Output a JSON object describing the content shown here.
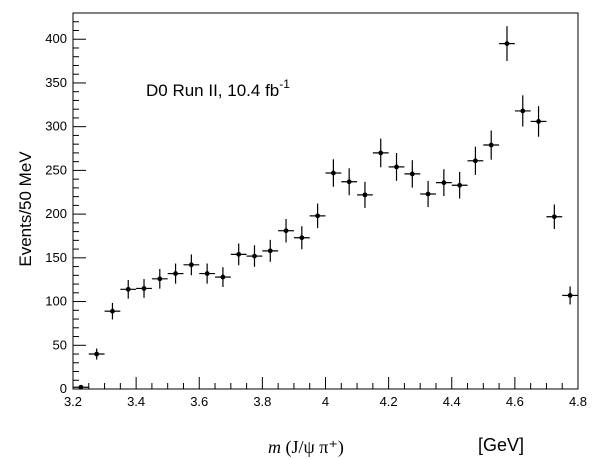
{
  "chart_data": {
    "type": "scatter",
    "style": "histogram with error bars",
    "title": "",
    "annotation": {
      "text": "D0 Run II, 10.4 fb",
      "superscript": "-1"
    },
    "xlabel": {
      "var": "m",
      "rest": " (J/ψ π⁺)",
      "unit": "[GeV]"
    },
    "ylabel": "Events/50 MeV",
    "xlim": [
      3.2,
      4.8
    ],
    "ylim": [
      0,
      430
    ],
    "xticks": [
      "3.2",
      "3.4",
      "3.6",
      "3.8",
      "4",
      "4.2",
      "4.4",
      "4.6",
      "4.8"
    ],
    "yticks": [
      "0",
      "50",
      "100",
      "150",
      "200",
      "250",
      "300",
      "350",
      "400"
    ],
    "bin_width": 0.05,
    "grid": false,
    "series": [
      {
        "x": [
          3.225,
          3.275,
          3.325,
          3.375,
          3.425,
          3.475,
          3.525,
          3.575,
          3.625,
          3.675,
          3.725,
          3.775,
          3.825,
          3.875,
          3.925,
          3.975,
          4.025,
          4.075,
          4.125,
          4.175,
          4.225,
          4.275,
          4.325,
          4.375,
          4.425,
          4.475,
          4.525,
          4.575,
          4.625,
          4.675,
          4.725,
          4.775
        ],
        "y": [
          2,
          40,
          89,
          114,
          115,
          126,
          132,
          142,
          132,
          128,
          154,
          152,
          158,
          181,
          173,
          198,
          247,
          237,
          222,
          270,
          254,
          246,
          223,
          236,
          233,
          261,
          279,
          395,
          318,
          306,
          197,
          107
        ]
      }
    ],
    "colors": {
      "marker": "#000000",
      "axis": "#000000"
    }
  }
}
